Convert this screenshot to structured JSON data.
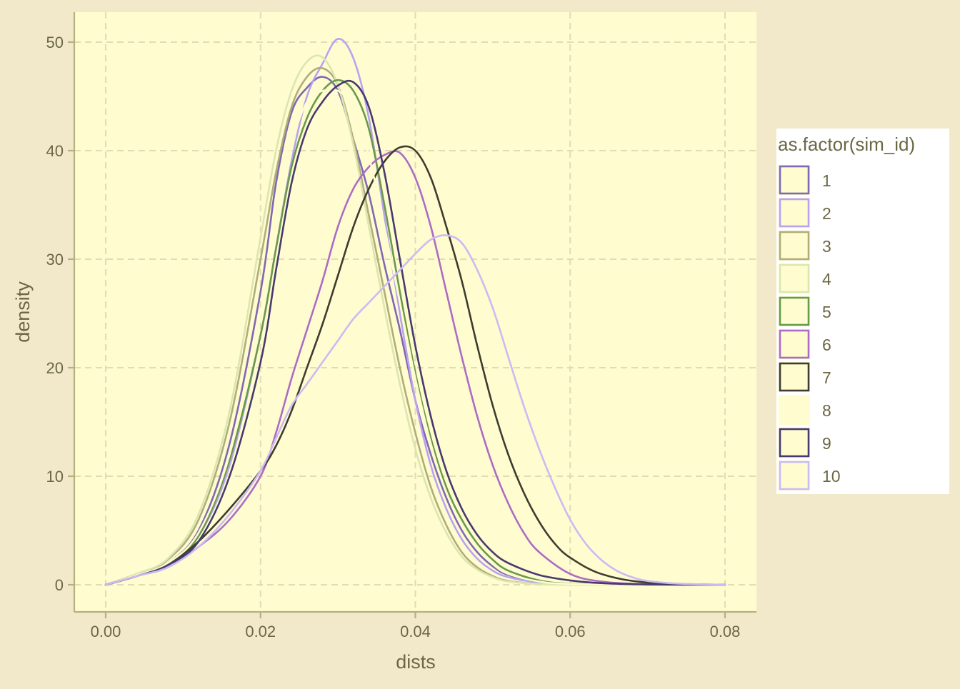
{
  "chart_data": {
    "type": "line",
    "xlabel": "dists",
    "ylabel": "density",
    "xlim": [
      0.0,
      0.08
    ],
    "ylim": [
      0,
      50
    ],
    "x_ticks": [
      "0.00",
      "0.02",
      "0.04",
      "0.06",
      "0.08"
    ],
    "y_ticks": [
      "0",
      "10",
      "20",
      "30",
      "40",
      "50"
    ],
    "grid": true,
    "legend_position": "right",
    "legend_title": "as.factor(sim_id)",
    "colors": {
      "page_background": "#f2e9cb",
      "panel_background": "#fffcd0",
      "grid": "#e2dcb4",
      "axis": "#b7b07e",
      "text": "#6b6745"
    },
    "series": [
      {
        "name": "1",
        "color": "#7e69b2",
        "points": [
          [
            0.0,
            0.0
          ],
          [
            0.004,
            0.9
          ],
          [
            0.008,
            2.0
          ],
          [
            0.012,
            5.0
          ],
          [
            0.016,
            13.0
          ],
          [
            0.02,
            27.0
          ],
          [
            0.022,
            37.0
          ],
          [
            0.024,
            43.5
          ],
          [
            0.026,
            45.8
          ],
          [
            0.028,
            46.8
          ],
          [
            0.03,
            45.5
          ],
          [
            0.032,
            41.0
          ],
          [
            0.034,
            36.0
          ],
          [
            0.036,
            29.5
          ],
          [
            0.038,
            23.5
          ],
          [
            0.04,
            17.0
          ],
          [
            0.042,
            12.0
          ],
          [
            0.044,
            8.0
          ],
          [
            0.046,
            5.0
          ],
          [
            0.048,
            3.0
          ],
          [
            0.05,
            1.7
          ],
          [
            0.052,
            0.9
          ],
          [
            0.056,
            0.3
          ],
          [
            0.06,
            0.08
          ],
          [
            0.07,
            0.0
          ],
          [
            0.08,
            0.0
          ]
        ]
      },
      {
        "name": "2",
        "color": "#b9a2f2",
        "points": [
          [
            0.0,
            0.0
          ],
          [
            0.004,
            0.9
          ],
          [
            0.008,
            1.9
          ],
          [
            0.012,
            4.5
          ],
          [
            0.016,
            11.0
          ],
          [
            0.02,
            23.0
          ],
          [
            0.022,
            31.0
          ],
          [
            0.024,
            39.0
          ],
          [
            0.026,
            45.0
          ],
          [
            0.028,
            48.0
          ],
          [
            0.03,
            50.3
          ],
          [
            0.032,
            48.5
          ],
          [
            0.034,
            43.0
          ],
          [
            0.036,
            34.0
          ],
          [
            0.038,
            25.0
          ],
          [
            0.04,
            17.0
          ],
          [
            0.042,
            11.0
          ],
          [
            0.044,
            7.0
          ],
          [
            0.046,
            4.2
          ],
          [
            0.048,
            2.4
          ],
          [
            0.05,
            1.3
          ],
          [
            0.052,
            0.7
          ],
          [
            0.056,
            0.2
          ],
          [
            0.06,
            0.05
          ],
          [
            0.07,
            0.0
          ],
          [
            0.08,
            0.0
          ]
        ]
      },
      {
        "name": "3",
        "color": "#b0ad78",
        "points": [
          [
            0.0,
            0.0
          ],
          [
            0.004,
            1.0
          ],
          [
            0.008,
            2.3
          ],
          [
            0.012,
            6.0
          ],
          [
            0.016,
            15.0
          ],
          [
            0.02,
            30.0
          ],
          [
            0.022,
            38.0
          ],
          [
            0.024,
            44.0
          ],
          [
            0.026,
            46.8
          ],
          [
            0.028,
            47.6
          ],
          [
            0.03,
            46.0
          ],
          [
            0.032,
            41.0
          ],
          [
            0.034,
            34.0
          ],
          [
            0.036,
            27.0
          ],
          [
            0.038,
            20.0
          ],
          [
            0.04,
            14.0
          ],
          [
            0.042,
            9.0
          ],
          [
            0.044,
            5.5
          ],
          [
            0.046,
            3.0
          ],
          [
            0.048,
            1.6
          ],
          [
            0.05,
            0.8
          ],
          [
            0.052,
            0.35
          ],
          [
            0.056,
            0.08
          ],
          [
            0.06,
            0.02
          ],
          [
            0.07,
            0.0
          ],
          [
            0.08,
            0.0
          ]
        ]
      },
      {
        "name": "4",
        "color": "#dbe6b0",
        "points": [
          [
            0.0,
            0.0
          ],
          [
            0.004,
            1.0
          ],
          [
            0.008,
            2.4
          ],
          [
            0.012,
            6.5
          ],
          [
            0.016,
            16.0
          ],
          [
            0.02,
            32.0
          ],
          [
            0.022,
            40.0
          ],
          [
            0.024,
            45.5
          ],
          [
            0.026,
            48.2
          ],
          [
            0.028,
            48.6
          ],
          [
            0.03,
            46.0
          ],
          [
            0.032,
            40.5
          ],
          [
            0.034,
            33.0
          ],
          [
            0.036,
            25.5
          ],
          [
            0.038,
            18.5
          ],
          [
            0.04,
            12.5
          ],
          [
            0.042,
            8.0
          ],
          [
            0.044,
            4.8
          ],
          [
            0.046,
            2.6
          ],
          [
            0.048,
            1.4
          ],
          [
            0.05,
            0.7
          ],
          [
            0.052,
            0.3
          ],
          [
            0.056,
            0.07
          ],
          [
            0.06,
            0.0
          ],
          [
            0.07,
            0.0
          ],
          [
            0.08,
            0.0
          ]
        ]
      },
      {
        "name": "5",
        "color": "#699a4a",
        "points": [
          [
            0.0,
            0.0
          ],
          [
            0.004,
            0.9
          ],
          [
            0.008,
            2.0
          ],
          [
            0.012,
            4.5
          ],
          [
            0.016,
            11.5
          ],
          [
            0.02,
            23.0
          ],
          [
            0.022,
            31.0
          ],
          [
            0.024,
            38.5
          ],
          [
            0.026,
            43.0
          ],
          [
            0.028,
            45.5
          ],
          [
            0.03,
            46.5
          ],
          [
            0.032,
            45.5
          ],
          [
            0.034,
            42.0
          ],
          [
            0.036,
            35.0
          ],
          [
            0.038,
            27.0
          ],
          [
            0.04,
            19.5
          ],
          [
            0.042,
            13.5
          ],
          [
            0.044,
            9.0
          ],
          [
            0.046,
            6.0
          ],
          [
            0.048,
            3.8
          ],
          [
            0.05,
            2.3
          ],
          [
            0.052,
            1.3
          ],
          [
            0.056,
            0.4
          ],
          [
            0.06,
            0.1
          ],
          [
            0.07,
            0.0
          ],
          [
            0.08,
            0.0
          ]
        ]
      },
      {
        "name": "6",
        "color": "#ad6cc4",
        "points": [
          [
            0.0,
            0.0
          ],
          [
            0.004,
            0.8
          ],
          [
            0.008,
            1.6
          ],
          [
            0.012,
            3.5
          ],
          [
            0.016,
            6.0
          ],
          [
            0.02,
            10.0
          ],
          [
            0.022,
            14.0
          ],
          [
            0.024,
            19.0
          ],
          [
            0.026,
            23.5
          ],
          [
            0.028,
            28.0
          ],
          [
            0.03,
            33.0
          ],
          [
            0.032,
            36.5
          ],
          [
            0.034,
            38.5
          ],
          [
            0.036,
            39.6
          ],
          [
            0.038,
            39.8
          ],
          [
            0.04,
            37.5
          ],
          [
            0.042,
            33.0
          ],
          [
            0.044,
            27.0
          ],
          [
            0.046,
            21.0
          ],
          [
            0.048,
            15.5
          ],
          [
            0.05,
            11.0
          ],
          [
            0.052,
            7.5
          ],
          [
            0.054,
            4.8
          ],
          [
            0.056,
            3.0
          ],
          [
            0.06,
            1.0
          ],
          [
            0.064,
            0.3
          ],
          [
            0.07,
            0.05
          ],
          [
            0.08,
            0.0
          ]
        ]
      },
      {
        "name": "7",
        "color": "#3e3c30",
        "points": [
          [
            0.0,
            0.0
          ],
          [
            0.004,
            0.8
          ],
          [
            0.008,
            1.8
          ],
          [
            0.012,
            4.0
          ],
          [
            0.016,
            7.0
          ],
          [
            0.02,
            10.5
          ],
          [
            0.022,
            12.8
          ],
          [
            0.024,
            16.0
          ],
          [
            0.026,
            20.0
          ],
          [
            0.028,
            24.0
          ],
          [
            0.03,
            28.5
          ],
          [
            0.032,
            33.0
          ],
          [
            0.034,
            36.5
          ],
          [
            0.036,
            39.0
          ],
          [
            0.038,
            40.3
          ],
          [
            0.04,
            40.0
          ],
          [
            0.042,
            37.5
          ],
          [
            0.044,
            33.0
          ],
          [
            0.046,
            28.0
          ],
          [
            0.048,
            22.0
          ],
          [
            0.05,
            16.5
          ],
          [
            0.052,
            12.0
          ],
          [
            0.054,
            8.5
          ],
          [
            0.056,
            5.8
          ],
          [
            0.058,
            3.8
          ],
          [
            0.06,
            2.5
          ],
          [
            0.064,
            1.0
          ],
          [
            0.07,
            0.2
          ],
          [
            0.08,
            0.0
          ]
        ]
      },
      {
        "name": "8",
        "color": "#fffccd",
        "points": [
          [
            0.0,
            0.0
          ],
          [
            0.004,
            0.9
          ],
          [
            0.008,
            2.0
          ],
          [
            0.012,
            4.8
          ],
          [
            0.016,
            12.0
          ],
          [
            0.02,
            25.0
          ],
          [
            0.022,
            33.5
          ],
          [
            0.024,
            40.5
          ],
          [
            0.026,
            44.5
          ],
          [
            0.028,
            45.5
          ],
          [
            0.03,
            45.5
          ],
          [
            0.032,
            44.0
          ],
          [
            0.034,
            39.5
          ],
          [
            0.036,
            33.0
          ],
          [
            0.038,
            26.0
          ],
          [
            0.04,
            19.0
          ],
          [
            0.042,
            13.0
          ],
          [
            0.044,
            8.5
          ],
          [
            0.046,
            5.5
          ],
          [
            0.048,
            3.3
          ],
          [
            0.05,
            1.9
          ],
          [
            0.052,
            1.0
          ],
          [
            0.056,
            0.3
          ],
          [
            0.06,
            0.08
          ],
          [
            0.07,
            0.0
          ],
          [
            0.08,
            0.0
          ]
        ]
      },
      {
        "name": "9",
        "color": "#473a6e",
        "points": [
          [
            0.0,
            0.0
          ],
          [
            0.004,
            0.8
          ],
          [
            0.008,
            1.8
          ],
          [
            0.012,
            4.0
          ],
          [
            0.016,
            10.0
          ],
          [
            0.02,
            20.5
          ],
          [
            0.022,
            29.0
          ],
          [
            0.024,
            37.0
          ],
          [
            0.026,
            42.0
          ],
          [
            0.028,
            44.5
          ],
          [
            0.03,
            46.0
          ],
          [
            0.032,
            46.3
          ],
          [
            0.034,
            44.0
          ],
          [
            0.036,
            38.0
          ],
          [
            0.038,
            30.0
          ],
          [
            0.04,
            22.0
          ],
          [
            0.042,
            15.5
          ],
          [
            0.044,
            10.5
          ],
          [
            0.046,
            7.0
          ],
          [
            0.048,
            4.6
          ],
          [
            0.05,
            3.0
          ],
          [
            0.052,
            2.0
          ],
          [
            0.056,
            0.9
          ],
          [
            0.06,
            0.4
          ],
          [
            0.064,
            0.15
          ],
          [
            0.07,
            0.03
          ],
          [
            0.08,
            0.0
          ]
        ]
      },
      {
        "name": "10",
        "color": "#cbbbf3",
        "points": [
          [
            0.0,
            0.0
          ],
          [
            0.004,
            0.8
          ],
          [
            0.008,
            1.6
          ],
          [
            0.012,
            3.5
          ],
          [
            0.016,
            6.5
          ],
          [
            0.02,
            10.5
          ],
          [
            0.022,
            13.5
          ],
          [
            0.024,
            16.5
          ],
          [
            0.026,
            18.5
          ],
          [
            0.028,
            20.5
          ],
          [
            0.03,
            22.5
          ],
          [
            0.032,
            24.5
          ],
          [
            0.034,
            26.0
          ],
          [
            0.036,
            27.5
          ],
          [
            0.038,
            29.0
          ],
          [
            0.04,
            30.5
          ],
          [
            0.042,
            31.8
          ],
          [
            0.044,
            32.2
          ],
          [
            0.046,
            31.5
          ],
          [
            0.048,
            29.0
          ],
          [
            0.05,
            25.5
          ],
          [
            0.052,
            21.0
          ],
          [
            0.054,
            16.5
          ],
          [
            0.056,
            12.5
          ],
          [
            0.058,
            9.0
          ],
          [
            0.06,
            6.0
          ],
          [
            0.062,
            3.8
          ],
          [
            0.064,
            2.3
          ],
          [
            0.066,
            1.3
          ],
          [
            0.068,
            0.7
          ],
          [
            0.07,
            0.35
          ],
          [
            0.074,
            0.1
          ],
          [
            0.08,
            0.0
          ]
        ]
      }
    ]
  }
}
